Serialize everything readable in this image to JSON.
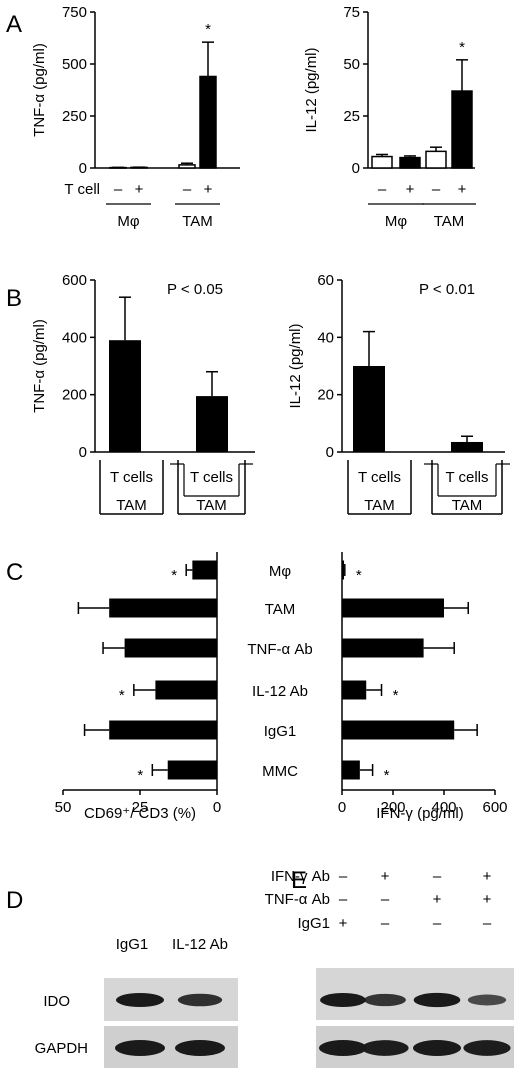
{
  "panels": {
    "A": "A",
    "B": "B",
    "C": "C",
    "D": "D",
    "E": "E"
  },
  "chart_data": [
    {
      "id": "A-left",
      "type": "bar",
      "ylabel": "TNF-α (pg/ml)",
      "ylim": [
        0,
        750
      ],
      "yticks": [
        "0",
        "250",
        "500",
        "750"
      ],
      "row_label": "T cell",
      "tcell_signs": [
        "–",
        "+",
        "–",
        "+"
      ],
      "groups": [
        "Mφ",
        "TAM"
      ],
      "series": [
        {
          "name": "",
          "fill": "#ffffff",
          "values": [
            2,
            15
          ],
          "errors": [
            1,
            8
          ]
        },
        {
          "name": "",
          "fill": "#000000",
          "values": [
            3,
            440
          ],
          "errors": [
            1,
            165
          ]
        }
      ],
      "annotations": [
        {
          "text": "*",
          "category": 3
        }
      ]
    },
    {
      "id": "A-right",
      "type": "bar",
      "ylabel": "IL-12 (pg/ml)",
      "ylim": [
        0,
        75
      ],
      "yticks": [
        "0",
        "25",
        "50",
        "75"
      ],
      "tcell_signs": [
        "–",
        "+",
        "–",
        "+"
      ],
      "groups": [
        "Mφ",
        "TAM"
      ],
      "series": [
        {
          "name": "",
          "fill": "#ffffff",
          "values": [
            5.5,
            8
          ],
          "errors": [
            1,
            2
          ]
        },
        {
          "name": "",
          "fill": "#000000",
          "values": [
            5,
            37
          ],
          "errors": [
            0.8,
            15
          ]
        }
      ],
      "annotations": [
        {
          "text": "*",
          "category": 3
        }
      ]
    },
    {
      "id": "B-left",
      "type": "bar",
      "ylabel": "TNF-α (pg/ml)",
      "ylim": [
        0,
        600
      ],
      "yticks": [
        "0",
        "200",
        "400",
        "600"
      ],
      "pvalue": "P < 0.05",
      "values": [
        390,
        195
      ],
      "errors": [
        150,
        85
      ],
      "conditions": [
        {
          "top": "T cells",
          "bottom": "TAM",
          "transwell": false
        },
        {
          "top": "T cells",
          "bottom": "TAM",
          "transwell": true
        }
      ]
    },
    {
      "id": "B-right",
      "type": "bar",
      "ylabel": "IL-12 (pg/ml)",
      "ylim": [
        0,
        60
      ],
      "yticks": [
        "0",
        "20",
        "40",
        "60"
      ],
      "pvalue": "P < 0.01",
      "values": [
        30,
        3.5
      ],
      "errors": [
        12,
        2
      ],
      "conditions": [
        {
          "top": "T cells",
          "bottom": "TAM",
          "transwell": false
        },
        {
          "top": "T cells",
          "bottom": "TAM",
          "transwell": true
        }
      ]
    },
    {
      "id": "C",
      "type": "bar",
      "orientation": "horizontal",
      "categories": [
        "Mφ",
        "TAM",
        "TNF-α Ab",
        "IL-12 Ab",
        "IgG1",
        "MMC"
      ],
      "left": {
        "xlabel": "CD69⁺/ CD3 (%)",
        "xlim": [
          50,
          0
        ],
        "xticks": [
          "50",
          "25",
          "0"
        ],
        "values": [
          8,
          35,
          30,
          20,
          35,
          16
        ],
        "errors": [
          2,
          10,
          7,
          7,
          8,
          5
        ],
        "stars": [
          true,
          false,
          false,
          true,
          false,
          true
        ]
      },
      "right": {
        "xlabel": "IFN-γ (pg/ml)",
        "xlim": [
          0,
          600
        ],
        "xticks": [
          "0",
          "200",
          "400",
          "600"
        ],
        "values": [
          8,
          400,
          320,
          95,
          440,
          70
        ],
        "errors": [
          3,
          95,
          120,
          60,
          90,
          50
        ],
        "stars": [
          true,
          false,
          false,
          true,
          false,
          true
        ]
      }
    }
  ],
  "blots": {
    "D": {
      "lanes": [
        "IgG1",
        "IL-12 Ab"
      ],
      "rows": [
        "IDO",
        "GAPDH"
      ],
      "ido_intensity": [
        1.0,
        0.75
      ],
      "gapdh_intensity": [
        1.0,
        1.0
      ]
    },
    "E": {
      "conditions": [
        {
          "label": "IFN-γ Ab",
          "signs": [
            "–",
            "+",
            "–",
            "+"
          ]
        },
        {
          "label": "TNF-α Ab",
          "signs": [
            "–",
            "–",
            "+",
            "+"
          ]
        },
        {
          "label": "IgG1",
          "signs": [
            "+",
            "–",
            "–",
            "–"
          ]
        }
      ],
      "ido_intensity": [
        1.0,
        0.7,
        1.05,
        0.45
      ],
      "gapdh_intensity": [
        1.0,
        0.95,
        1.0,
        0.95
      ]
    }
  }
}
